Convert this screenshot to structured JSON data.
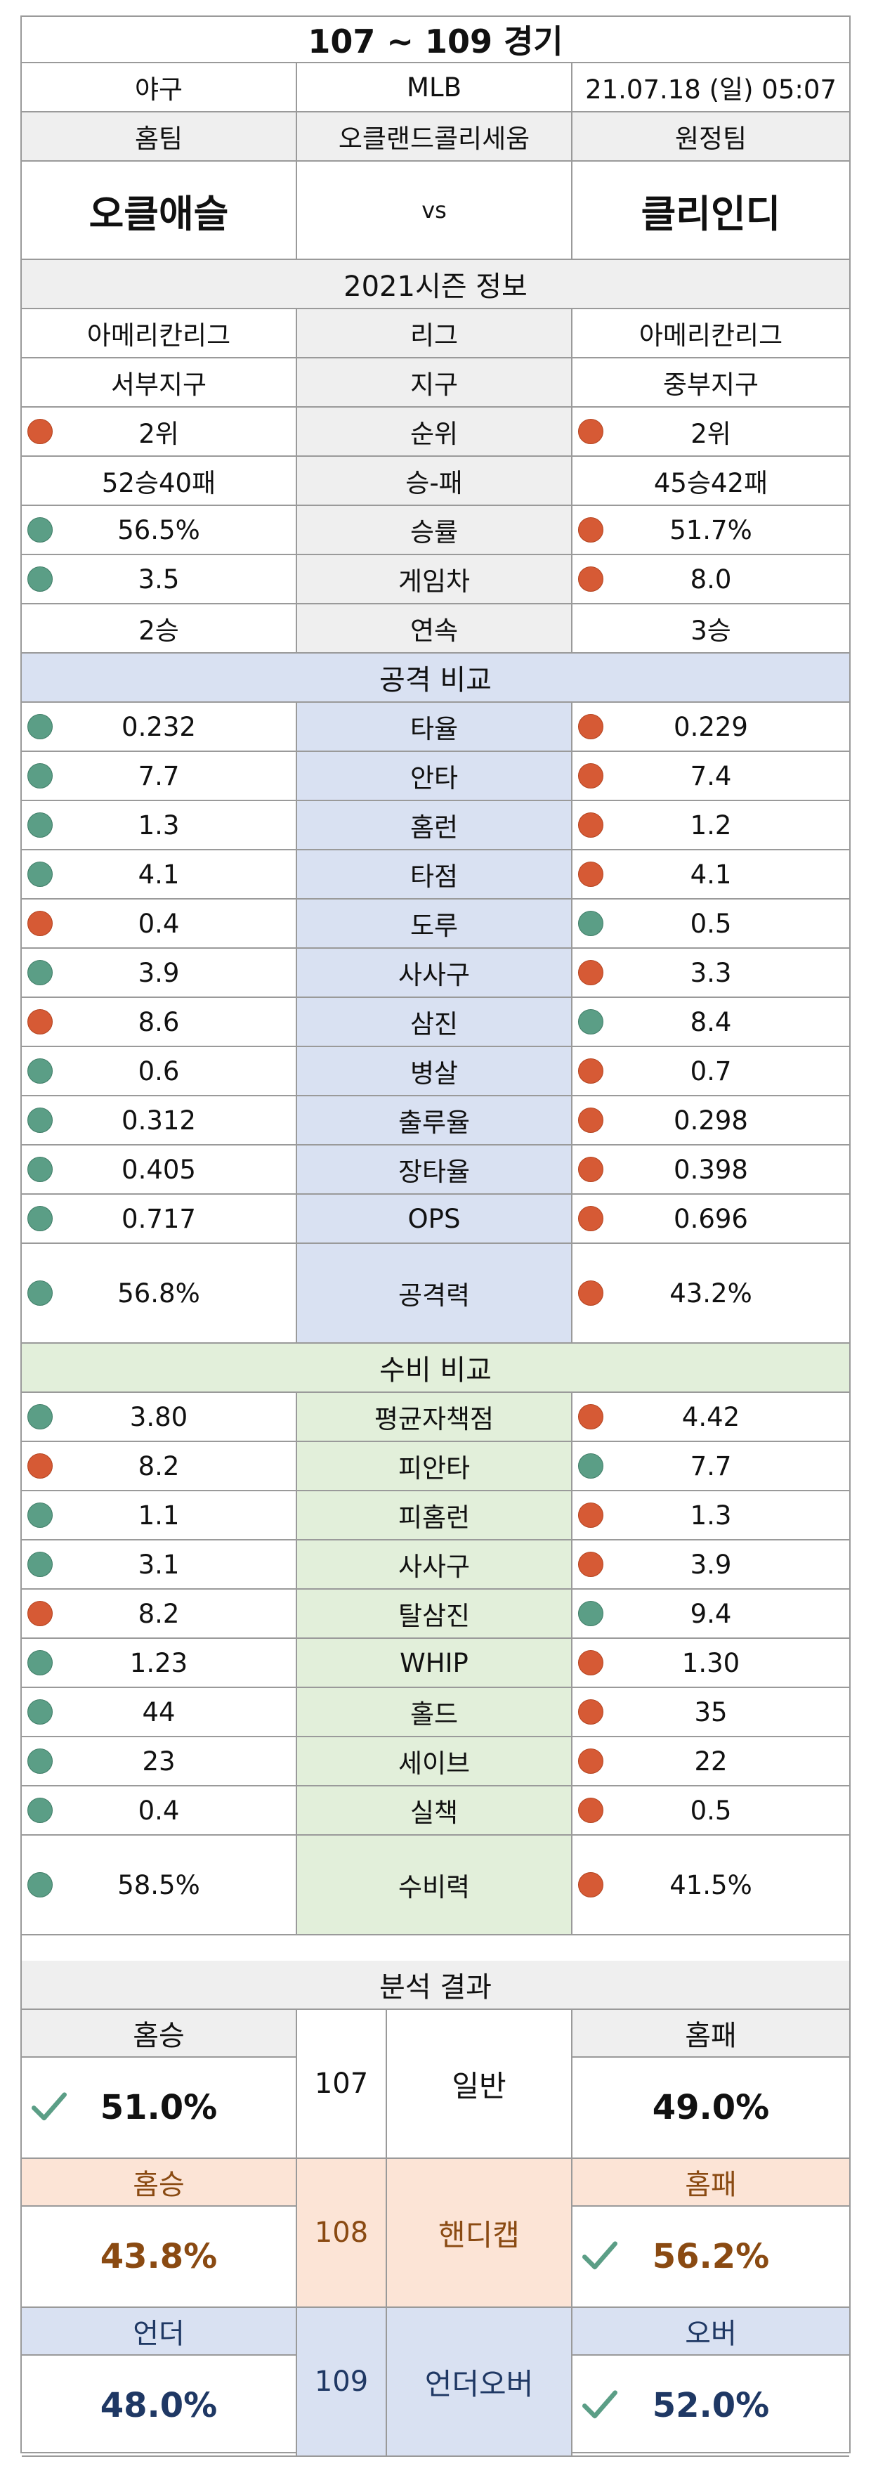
{
  "header": {
    "title": "107 ~ 109 경기"
  },
  "meta": {
    "sport": "야구",
    "league": "MLB",
    "datetime": "21.07.18 (일) 05:07"
  },
  "match": {
    "home_label": "홈팀",
    "stadium": "오클랜드콜리세움",
    "away_label": "원정팀",
    "home_team": "오클애슬",
    "vs": "vs",
    "away_team": "클리인디"
  },
  "season": {
    "title": "2021시즌 정보",
    "rows": [
      {
        "home": "아메리칸리그",
        "label": "리그",
        "away": "아메리칸리그",
        "home_dot": "",
        "away_dot": ""
      },
      {
        "home": "서부지구",
        "label": "지구",
        "away": "중부지구",
        "home_dot": "",
        "away_dot": ""
      },
      {
        "home": "2위",
        "label": "순위",
        "away": "2위",
        "home_dot": "red",
        "away_dot": "red"
      },
      {
        "home": "52승40패",
        "label": "승-패",
        "away": "45승42패",
        "home_dot": "",
        "away_dot": ""
      },
      {
        "home": "56.5%",
        "label": "승률",
        "away": "51.7%",
        "home_dot": "green",
        "away_dot": "red"
      },
      {
        "home": "3.5",
        "label": "게임차",
        "away": "8.0",
        "home_dot": "green",
        "away_dot": "red"
      },
      {
        "home": "2승",
        "label": "연속",
        "away": "3승",
        "home_dot": "",
        "away_dot": ""
      }
    ]
  },
  "attack": {
    "title": "공격 비교",
    "rows": [
      {
        "home": "0.232",
        "label": "타율",
        "away": "0.229",
        "home_dot": "green",
        "away_dot": "red"
      },
      {
        "home": "7.7",
        "label": "안타",
        "away": "7.4",
        "home_dot": "green",
        "away_dot": "red"
      },
      {
        "home": "1.3",
        "label": "홈런",
        "away": "1.2",
        "home_dot": "green",
        "away_dot": "red"
      },
      {
        "home": "4.1",
        "label": "타점",
        "away": "4.1",
        "home_dot": "green",
        "away_dot": "red"
      },
      {
        "home": "0.4",
        "label": "도루",
        "away": "0.5",
        "home_dot": "red",
        "away_dot": "green"
      },
      {
        "home": "3.9",
        "label": "사사구",
        "away": "3.3",
        "home_dot": "green",
        "away_dot": "red"
      },
      {
        "home": "8.6",
        "label": "삼진",
        "away": "8.4",
        "home_dot": "red",
        "away_dot": "green"
      },
      {
        "home": "0.6",
        "label": "병살",
        "away": "0.7",
        "home_dot": "green",
        "away_dot": "red"
      },
      {
        "home": "0.312",
        "label": "출루율",
        "away": "0.298",
        "home_dot": "green",
        "away_dot": "red"
      },
      {
        "home": "0.405",
        "label": "장타율",
        "away": "0.398",
        "home_dot": "green",
        "away_dot": "red"
      },
      {
        "home": "0.717",
        "label": "OPS",
        "away": "0.696",
        "home_dot": "green",
        "away_dot": "red"
      },
      {
        "home": "56.8%",
        "label": "공격력",
        "away": "43.2%",
        "home_dot": "green",
        "away_dot": "red"
      }
    ]
  },
  "defense": {
    "title": "수비 비교",
    "rows": [
      {
        "home": "3.80",
        "label": "평균자책점",
        "away": "4.42",
        "home_dot": "green",
        "away_dot": "red"
      },
      {
        "home": "8.2",
        "label": "피안타",
        "away": "7.7",
        "home_dot": "red",
        "away_dot": "green"
      },
      {
        "home": "1.1",
        "label": "피홈런",
        "away": "1.3",
        "home_dot": "green",
        "away_dot": "red"
      },
      {
        "home": "3.1",
        "label": "사사구",
        "away": "3.9",
        "home_dot": "green",
        "away_dot": "red"
      },
      {
        "home": "8.2",
        "label": "탈삼진",
        "away": "9.4",
        "home_dot": "red",
        "away_dot": "green"
      },
      {
        "home": "1.23",
        "label": "WHIP",
        "away": "1.30",
        "home_dot": "green",
        "away_dot": "red"
      },
      {
        "home": "44",
        "label": "홀드",
        "away": "35",
        "home_dot": "green",
        "away_dot": "red"
      },
      {
        "home": "23",
        "label": "세이브",
        "away": "22",
        "home_dot": "green",
        "away_dot": "red"
      },
      {
        "home": "0.4",
        "label": "실책",
        "away": "0.5",
        "home_dot": "green",
        "away_dot": "red"
      },
      {
        "home": "58.5%",
        "label": "수비력",
        "away": "41.5%",
        "home_dot": "green",
        "away_dot": "red"
      }
    ]
  },
  "analysis": {
    "title": "분석 결과",
    "results": [
      {
        "game": "107",
        "type": "일반",
        "left_head": "홈승",
        "left_val": "51.0%",
        "right_head": "홈패",
        "right_val": "49.0%",
        "pick": "left"
      },
      {
        "game": "108",
        "type": "핸디캡",
        "left_head": "홈승",
        "left_val": "43.8%",
        "right_head": "홈패",
        "right_val": "56.2%",
        "pick": "right"
      },
      {
        "game": "109",
        "type": "언더오버",
        "left_head": "언더",
        "left_val": "48.0%",
        "right_head": "오버",
        "right_val": "52.0%",
        "pick": "right"
      }
    ]
  },
  "colors": {
    "dot_green": "#5b9e86",
    "dot_red": "#d65a35",
    "attack_bg": "#d9e1f2",
    "defense_bg": "#e2efda",
    "handicap_bg": "#fce4d6",
    "check": "#5b9e86"
  }
}
